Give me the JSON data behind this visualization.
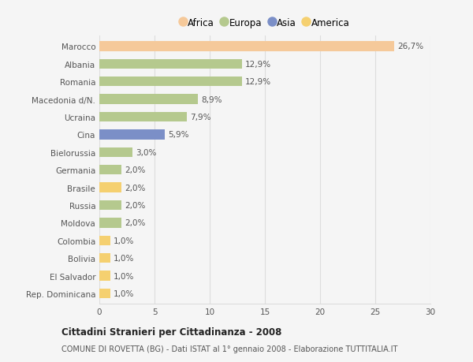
{
  "categories": [
    "Marocco",
    "Albania",
    "Romania",
    "Macedonia d/N.",
    "Ucraina",
    "Cina",
    "Bielorussia",
    "Germania",
    "Brasile",
    "Russia",
    "Moldova",
    "Colombia",
    "Bolivia",
    "El Salvador",
    "Rep. Dominicana"
  ],
  "values": [
    26.7,
    12.9,
    12.9,
    8.9,
    7.9,
    5.9,
    3.0,
    2.0,
    2.0,
    2.0,
    2.0,
    1.0,
    1.0,
    1.0,
    1.0
  ],
  "labels": [
    "26,7%",
    "12,9%",
    "12,9%",
    "8,9%",
    "7,9%",
    "5,9%",
    "3,0%",
    "2,0%",
    "2,0%",
    "2,0%",
    "2,0%",
    "1,0%",
    "1,0%",
    "1,0%",
    "1,0%"
  ],
  "colors": [
    "#f5c99a",
    "#b5c98e",
    "#b5c98e",
    "#b5c98e",
    "#b5c98e",
    "#7b8fc7",
    "#b5c98e",
    "#b5c98e",
    "#f5d070",
    "#b5c98e",
    "#b5c98e",
    "#f5d070",
    "#f5d070",
    "#f5d070",
    "#f5d070"
  ],
  "legend_labels": [
    "Africa",
    "Europa",
    "Asia",
    "America"
  ],
  "legend_colors": [
    "#f5c99a",
    "#b5c98e",
    "#7b8fc7",
    "#f5d070"
  ],
  "title": "Cittadini Stranieri per Cittadinanza - 2008",
  "subtitle": "COMUNE DI ROVETTA (BG) - Dati ISTAT al 1° gennaio 2008 - Elaborazione TUTTITALIA.IT",
  "xlim": [
    0,
    30
  ],
  "xticks": [
    0,
    5,
    10,
    15,
    20,
    25,
    30
  ],
  "bg_color": "#f5f5f5",
  "grid_color": "#dddddd",
  "bar_height": 0.55,
  "label_fontsize": 7.5,
  "ytick_fontsize": 7.5,
  "xtick_fontsize": 7.5
}
